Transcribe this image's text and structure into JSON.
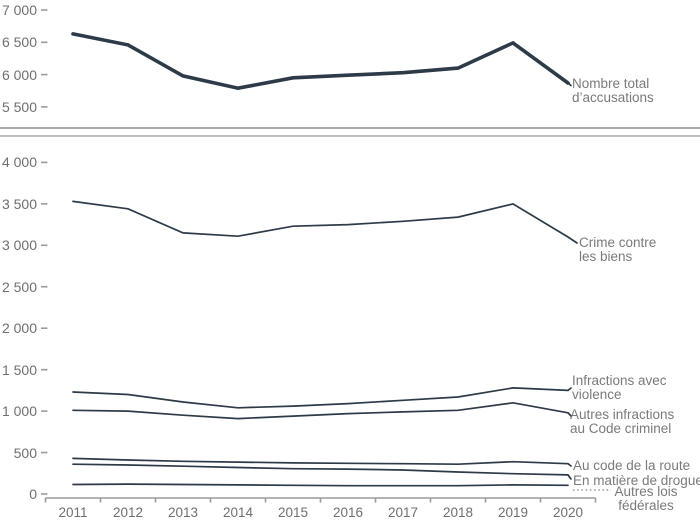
{
  "chart_data": {
    "type": "line",
    "title": "",
    "x_label": "",
    "years": [
      2011,
      2012,
      2013,
      2014,
      2015,
      2016,
      2017,
      2018,
      2019,
      2020
    ],
    "x_tick_labels": [
      "2011",
      "2012",
      "2013",
      "2014",
      "2015",
      "2016",
      "2017",
      "2018",
      "2019",
      "2020"
    ],
    "line_color": "#2d3a48",
    "axis_color": "#9b9b9b",
    "tick_label_color": "#6f6f6f",
    "series_label_color": "#7a7a7a",
    "divider_color": "#b0b0b0",
    "panels": [
      {
        "id": "top",
        "ylim": [
          5500,
          7000
        ],
        "ytick_values": [
          7000,
          6500,
          6000,
          5500
        ],
        "ytick_labels": [
          "7 000",
          "6 500",
          "6 000",
          "5 500"
        ],
        "series": [
          {
            "id": "total",
            "name": "Nombre total d’accusations",
            "label_lines": [
              "Nombre total",
              "d’accusations"
            ],
            "values": [
              6630,
              6460,
              5980,
              5790,
              5950,
              5990,
              6030,
              6100,
              6490,
              5870
            ],
            "thick": true
          }
        ]
      },
      {
        "id": "bottom",
        "ylim": [
          0,
          4000
        ],
        "ytick_values": [
          4000,
          3500,
          3000,
          2500,
          2000,
          1500,
          1000,
          500,
          0
        ],
        "ytick_labels": [
          "4 000",
          "3 500",
          "3 000",
          "2 500",
          "2 000",
          "1 500",
          "1 000",
          "500",
          "0"
        ],
        "series": [
          {
            "id": "crime_biens",
            "name": "Crime contre les biens",
            "label_lines": [
              "Crime contre",
              "les biens"
            ],
            "values": [
              3530,
              3440,
              3150,
              3110,
              3230,
              3250,
              3290,
              3340,
              3500,
              3100
            ],
            "thick": false
          },
          {
            "id": "infractions_violence",
            "name": "Infractions avec violence",
            "label_lines": [
              "Infractions avec",
              "violence"
            ],
            "values": [
              1230,
              1200,
              1110,
              1040,
              1060,
              1090,
              1130,
              1170,
              1280,
              1250
            ],
            "thick": false
          },
          {
            "id": "autres_code_criminel",
            "name": "Autres infractions au Code criminel",
            "label_lines": [
              "Autres infractions",
              "au Code criminel"
            ],
            "values": [
              1010,
              1000,
              950,
              910,
              940,
              970,
              990,
              1010,
              1100,
              980
            ],
            "thick": false
          },
          {
            "id": "code_route",
            "name": "Au code de la route",
            "label_lines": [
              "Au code de la route"
            ],
            "values": [
              430,
              410,
              395,
              385,
              375,
              370,
              365,
              360,
              390,
              365
            ],
            "thick": false
          },
          {
            "id": "drogue",
            "name": "En matière de drogue",
            "label_lines": [
              "En matière de drogue"
            ],
            "values": [
              360,
              350,
              335,
              320,
              305,
              300,
              290,
              265,
              245,
              230
            ],
            "thick": false
          },
          {
            "id": "autres_lois",
            "name": "Autres lois fédérales",
            "label_lines": [
              "Autres lois",
              "fédérales"
            ],
            "values": [
              115,
              120,
              115,
              110,
              105,
              100,
              100,
              100,
              110,
              105
            ],
            "thick": false
          }
        ]
      }
    ]
  }
}
